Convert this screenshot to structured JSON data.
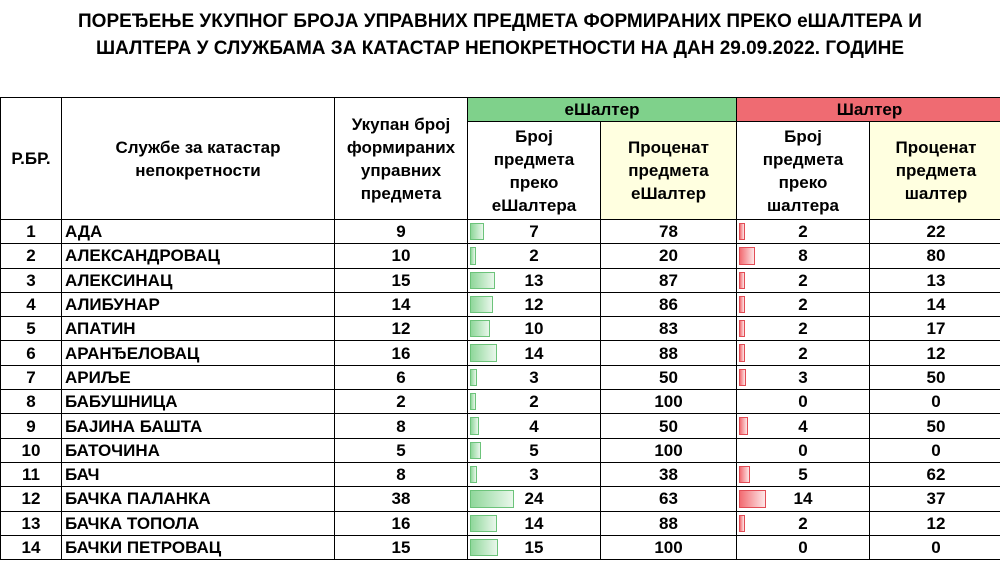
{
  "title": {
    "line1": "ПОРЕЂЕЊЕ УКУПНОГ БРОЈА УПРАВНИХ ПРЕДМЕТА ФОРМИРАНИХ ПРЕКО еШАЛТЕРА И",
    "line2": "ШАЛТЕРА У СЛУЖБАМА ЗА КАТАСТАР НЕПОКРЕТНОСТИ НА ДАН 29.09.2022. ГОДИНЕ"
  },
  "headers": {
    "rbr": "Р.БР.",
    "service": "Службе за катастар непокретности",
    "total": "Укупан број формираних управних предмета",
    "eshalter_group": "еШалтер",
    "eshalter_count": "Број предмета преко еШалтера",
    "eshalter_pct": "Проценат предмета еШалтер",
    "shalter_group": "Шалтер",
    "shalter_count": "Број предмета преко шалтера",
    "shalter_pct": "Проценат предмета шалтер"
  },
  "colors": {
    "green_header": "#7fd18b",
    "red_header": "#ef6b72",
    "pct_header": "#ffffe0"
  },
  "rows": [
    {
      "no": "1",
      "name": "АДА",
      "total": "9",
      "e_count": "7",
      "e_pct": "78",
      "s_count": "2",
      "s_pct": "22"
    },
    {
      "no": "2",
      "name": "АЛЕКСАНДРОВАЦ",
      "total": "10",
      "e_count": "2",
      "e_pct": "20",
      "s_count": "8",
      "s_pct": "80"
    },
    {
      "no": "3",
      "name": "АЛЕКСИНАЦ",
      "total": "15",
      "e_count": "13",
      "e_pct": "87",
      "s_count": "2",
      "s_pct": "13"
    },
    {
      "no": "4",
      "name": "АЛИБУНАР",
      "total": "14",
      "e_count": "12",
      "e_pct": "86",
      "s_count": "2",
      "s_pct": "14"
    },
    {
      "no": "5",
      "name": "АПАТИН",
      "total": "12",
      "e_count": "10",
      "e_pct": "83",
      "s_count": "2",
      "s_pct": "17"
    },
    {
      "no": "6",
      "name": "АРАНЂЕЛОВАЦ",
      "total": "16",
      "e_count": "14",
      "e_pct": "88",
      "s_count": "2",
      "s_pct": "12"
    },
    {
      "no": "7",
      "name": "АРИЉЕ",
      "total": "6",
      "e_count": "3",
      "e_pct": "50",
      "s_count": "3",
      "s_pct": "50"
    },
    {
      "no": "8",
      "name": "БАБУШНИЦА",
      "total": "2",
      "e_count": "2",
      "e_pct": "100",
      "s_count": "0",
      "s_pct": "0"
    },
    {
      "no": "9",
      "name": "БАЈИНА БАШТА",
      "total": "8",
      "e_count": "4",
      "e_pct": "50",
      "s_count": "4",
      "s_pct": "50"
    },
    {
      "no": "10",
      "name": "БАТОЧИНА",
      "total": "5",
      "e_count": "5",
      "e_pct": "100",
      "s_count": "0",
      "s_pct": "0"
    },
    {
      "no": "11",
      "name": "БАЧ",
      "total": "8",
      "e_count": "3",
      "e_pct": "38",
      "s_count": "5",
      "s_pct": "62"
    },
    {
      "no": "12",
      "name": "БАЧКА ПАЛАНКА",
      "total": "38",
      "e_count": "24",
      "e_pct": "63",
      "s_count": "14",
      "s_pct": "37"
    },
    {
      "no": "13",
      "name": "БАЧКА ТОПОЛА",
      "total": "16",
      "e_count": "14",
      "e_pct": "88",
      "s_count": "2",
      "s_pct": "12"
    },
    {
      "no": "14",
      "name": "БАЧКИ ПЕТРОВАЦ",
      "total": "15",
      "e_count": "15",
      "e_pct": "100",
      "s_count": "0",
      "s_pct": "0"
    }
  ]
}
